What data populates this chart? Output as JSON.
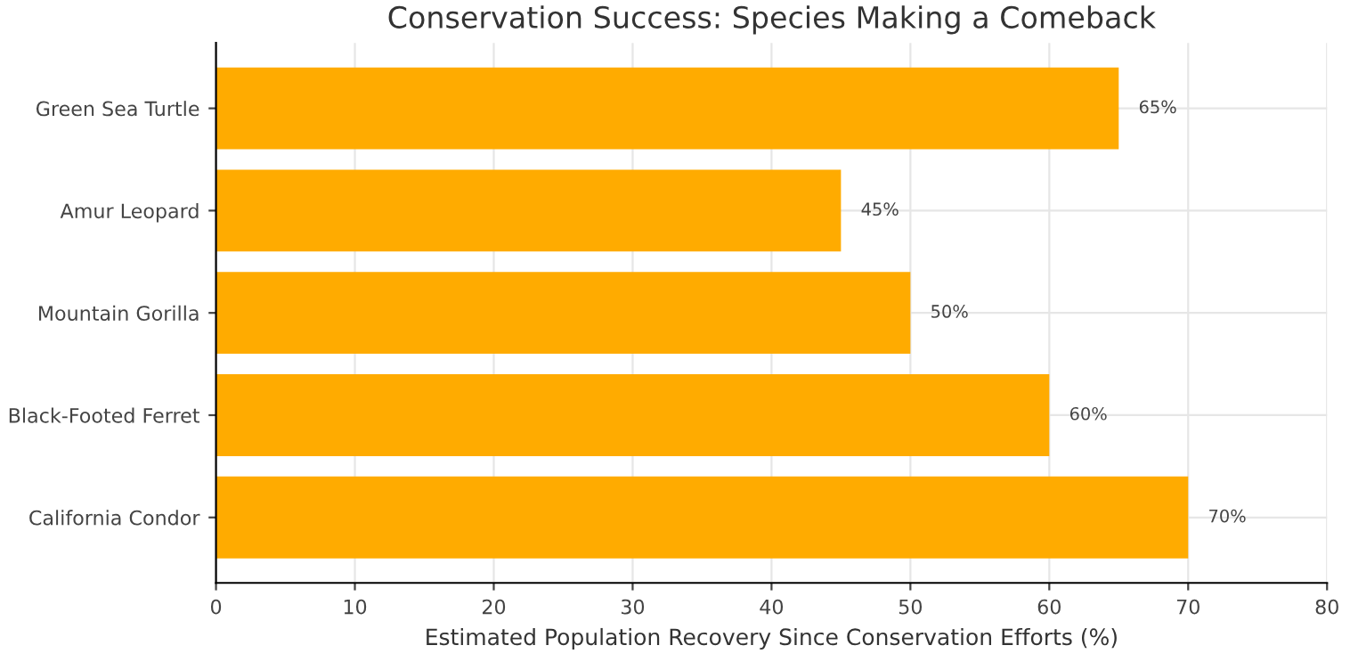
{
  "chart_data": {
    "type": "bar",
    "orientation": "horizontal",
    "title": "Conservation Success: Species Making a Comeback",
    "xlabel": "Estimated Population Recovery Since Conservation Efforts (%)",
    "categories": [
      "Green Sea Turtle",
      "Amur Leopard",
      "Mountain Gorilla",
      "Black-Footed Ferret",
      "California Condor"
    ],
    "values": [
      65,
      45,
      50,
      60,
      70
    ],
    "value_labels": [
      "65%",
      "45%",
      "50%",
      "60%",
      "70%"
    ],
    "color": "#ffab00",
    "xlim": [
      0,
      80
    ],
    "xticks": [
      0,
      10,
      20,
      30,
      40,
      50,
      60,
      70,
      80
    ],
    "grid": true
  }
}
